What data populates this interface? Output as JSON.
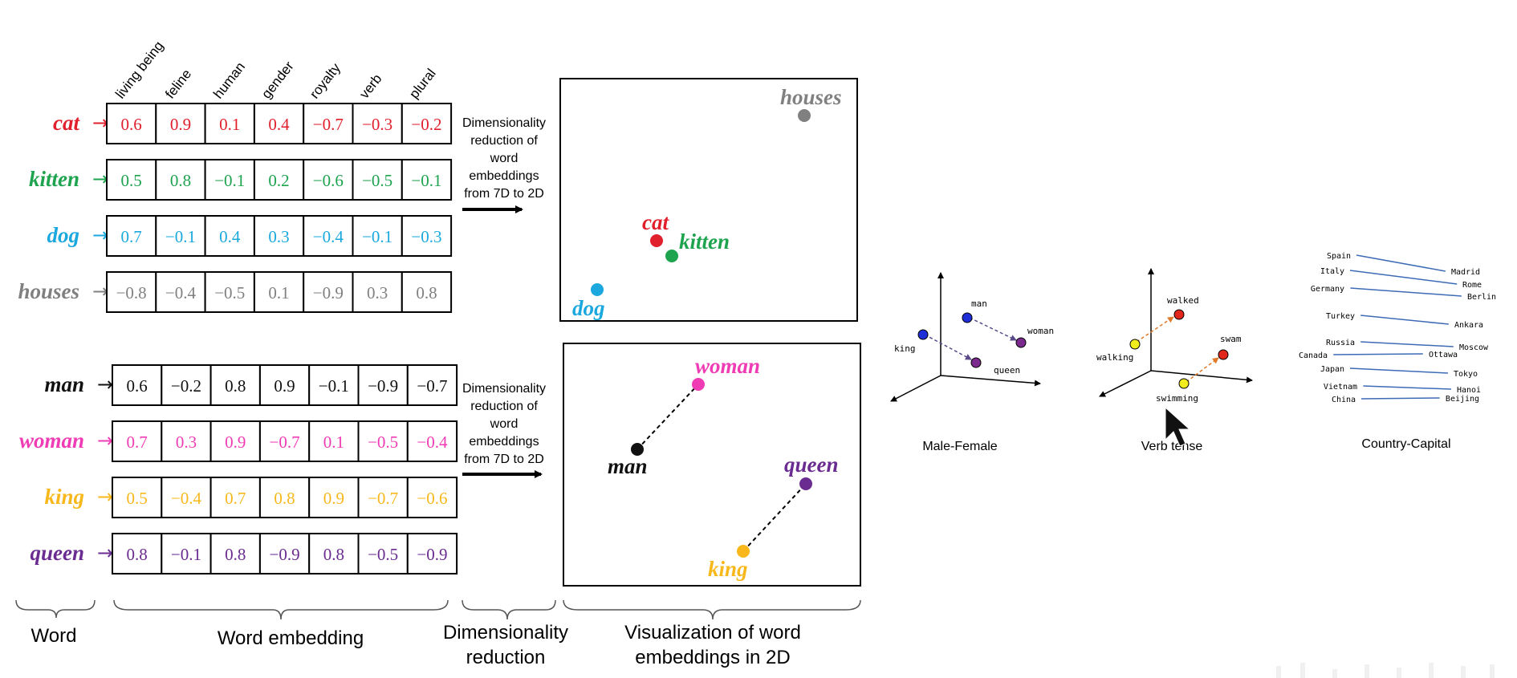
{
  "feature_headers": [
    "living being",
    "feline",
    "human",
    "gender",
    "royalty",
    "verb",
    "plural"
  ],
  "colors": {
    "cat": "#e0202c",
    "kitten": "#1ea34e",
    "dog": "#1aa8df",
    "houses": "#808080",
    "man": "#111111",
    "woman": "#f03cb4",
    "king": "#f8b81c",
    "queen": "#6a2c91",
    "blue_dot": "#1f2fd8",
    "red_dot": "#e2261b",
    "yellow_dot": "#f1ec1c",
    "purple_dot": "#7a2a8c",
    "line_blue": "#3e6bb5",
    "arrow_orange": "#e07a2a"
  },
  "top_words": [
    {
      "key": "cat",
      "label": "cat",
      "values": [
        "0.6",
        "0.9",
        "0.1",
        "0.4",
        "−0.7",
        "−0.3",
        "−0.2"
      ]
    },
    {
      "key": "kitten",
      "label": "kitten",
      "values": [
        "0.5",
        "0.8",
        "−0.1",
        "0.2",
        "−0.6",
        "−0.5",
        "−0.1"
      ]
    },
    {
      "key": "dog",
      "label": "dog",
      "values": [
        "0.7",
        "−0.1",
        "0.4",
        "0.3",
        "−0.4",
        "−0.1",
        "−0.3"
      ]
    },
    {
      "key": "houses",
      "label": "houses",
      "values": [
        "−0.8",
        "−0.4",
        "−0.5",
        "0.1",
        "−0.9",
        "0.3",
        "0.8"
      ]
    }
  ],
  "bottom_words": [
    {
      "key": "man",
      "label": "man",
      "values": [
        "0.6",
        "−0.2",
        "0.8",
        "0.9",
        "−0.1",
        "−0.9",
        "−0.7"
      ]
    },
    {
      "key": "woman",
      "label": "woman",
      "values": [
        "0.7",
        "0.3",
        "0.9",
        "−0.7",
        "0.1",
        "−0.5",
        "−0.4"
      ]
    },
    {
      "key": "king",
      "label": "king",
      "values": [
        "0.5",
        "−0.4",
        "0.7",
        "0.8",
        "0.9",
        "−0.7",
        "−0.6"
      ]
    },
    {
      "key": "queen",
      "label": "queen",
      "values": [
        "0.8",
        "−0.1",
        "0.8",
        "−0.9",
        "0.8",
        "−0.5",
        "−0.9"
      ]
    }
  ],
  "arrow_symbol": "→",
  "dim_reduction_text": [
    "Dimensionality",
    "reduction of",
    "word",
    "embeddings",
    "from 7D to 2D"
  ],
  "plot_top_labels": {
    "houses": "houses",
    "cat": "cat",
    "kitten": "kitten",
    "dog": "dog"
  },
  "plot_bottom_labels": {
    "woman": "woman",
    "man": "man",
    "queen": "queen",
    "king": "king"
  },
  "bottom_labels": {
    "word": "Word",
    "embedding": "Word embedding",
    "dimred": [
      "Dimensionality",
      "reduction"
    ],
    "viz": [
      "Visualization of word",
      "embeddings  in 2D"
    ]
  },
  "male_female": {
    "title": "Male-Female",
    "man": "man",
    "woman": "woman",
    "king": "king",
    "queen": "queen"
  },
  "verb_tense": {
    "title": "Verb tense",
    "walked": "walked",
    "walking": "walking",
    "swam": "swam",
    "swimming": "swimming"
  },
  "country_capital": {
    "title": "Country-Capital",
    "countries": [
      "Spain",
      "Italy",
      "Germany",
      "Turkey",
      "Russia",
      "Canada",
      "Japan",
      "Vietnam",
      "China"
    ],
    "capitals": [
      "Madrid",
      "Rome",
      "Berlin",
      "Ankara",
      "Moscow",
      "Ottawa",
      "Tokyo",
      "Hanoi",
      "Beijing"
    ]
  }
}
